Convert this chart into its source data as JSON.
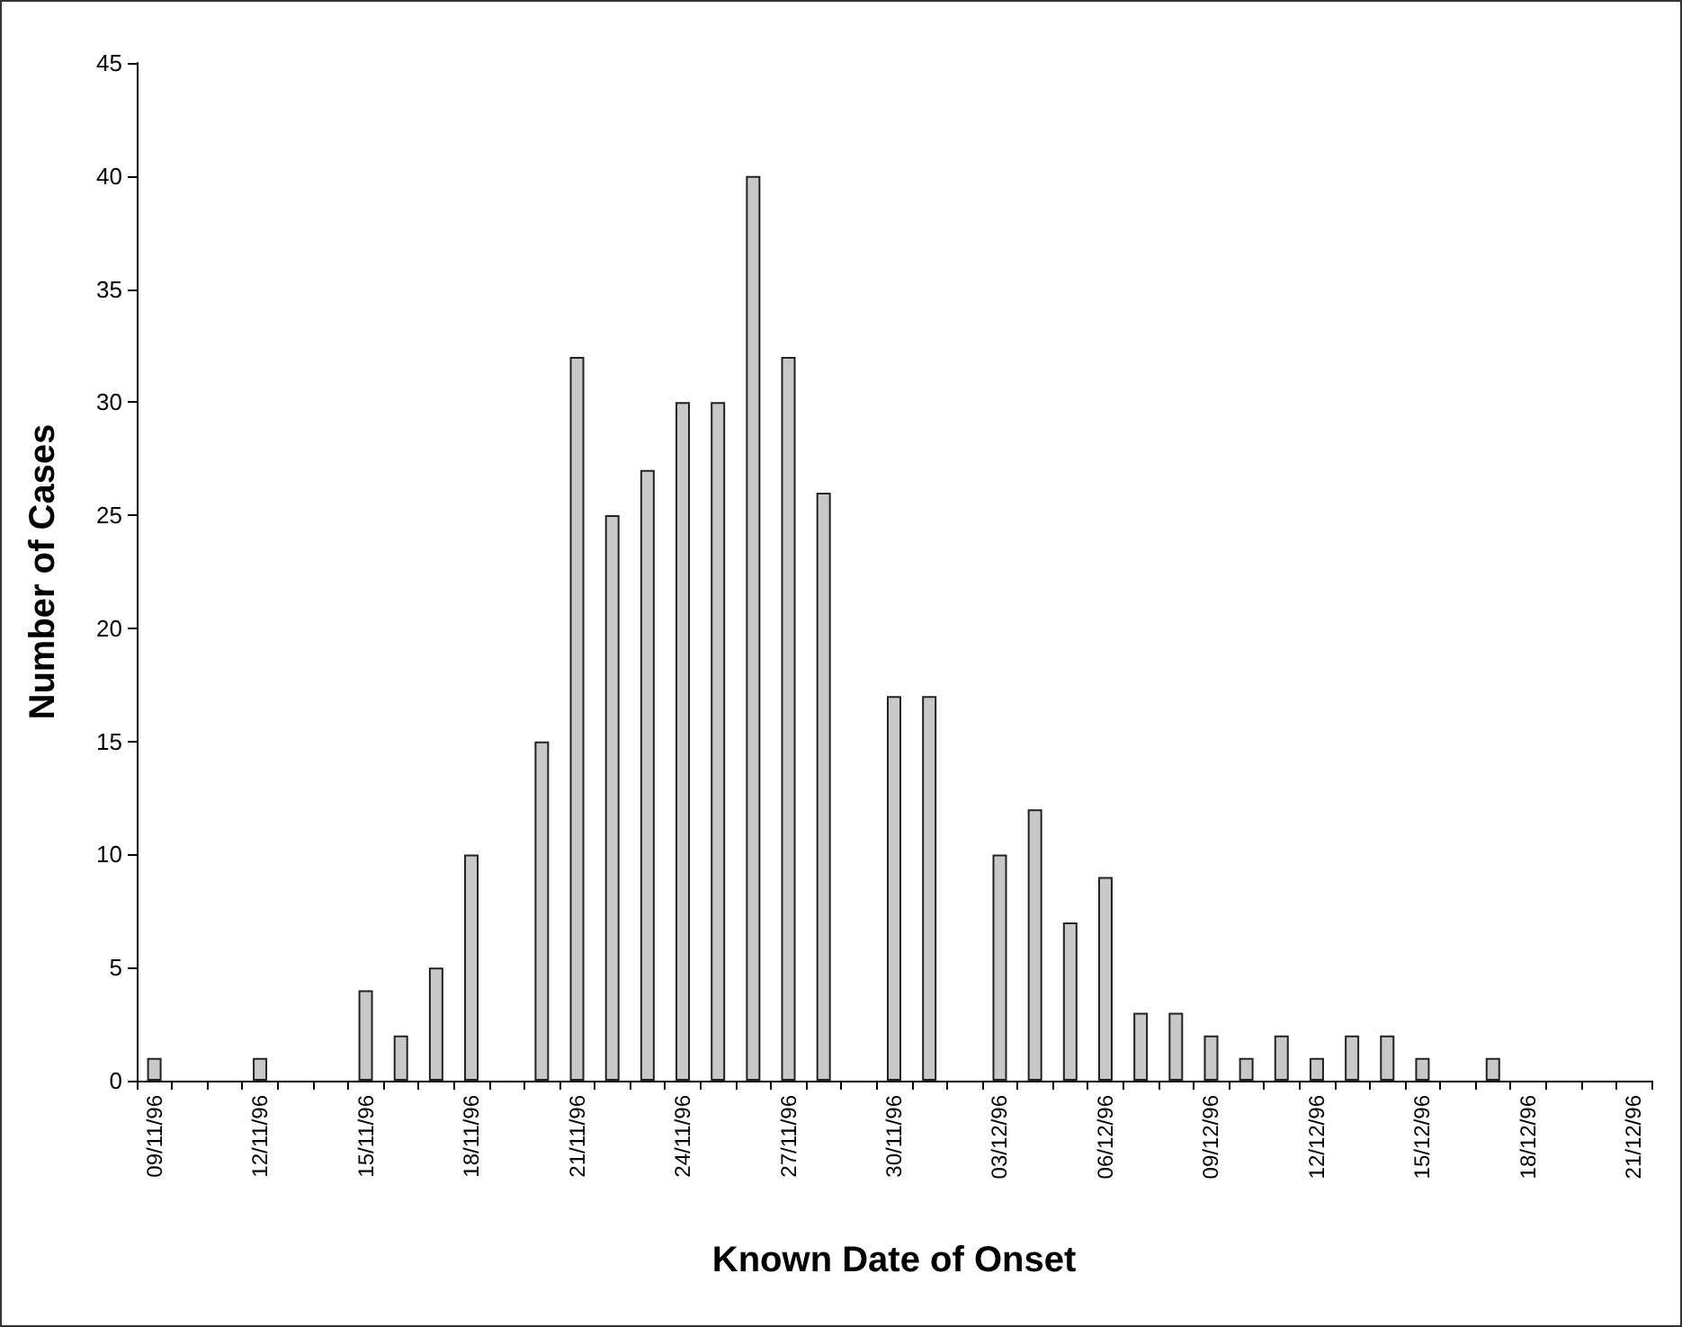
{
  "chart_data": {
    "type": "bar",
    "xlabel": "Known Date of Onset",
    "ylabel": "Number of Cases",
    "categories": [
      "09/11/96",
      null,
      null,
      "12/11/96",
      null,
      null,
      "15/11/96",
      null,
      null,
      "18/11/96",
      null,
      null,
      "21/11/96",
      null,
      null,
      "24/11/96",
      null,
      null,
      "27/11/96",
      null,
      null,
      "30/11/96",
      null,
      null,
      "03/12/96",
      null,
      null,
      "06/12/96",
      null,
      null,
      "09/12/96",
      null,
      null,
      "12/12/96",
      null,
      null,
      "15/12/96",
      null,
      null,
      "18/12/96",
      null,
      null,
      "21/12/96"
    ],
    "values": [
      1,
      0,
      0,
      1,
      0,
      0,
      4,
      2,
      5,
      10,
      0,
      15,
      32,
      25,
      27,
      30,
      30,
      40,
      32,
      26,
      0,
      17,
      17,
      0,
      10,
      12,
      7,
      9,
      3,
      3,
      2,
      1,
      2,
      1,
      2,
      2,
      1,
      0,
      1,
      0,
      0,
      0,
      0
    ],
    "color": "#c8c8c8",
    "ylim": [
      0,
      45
    ],
    "yticks": [
      0,
      5,
      10,
      15,
      20,
      25,
      30,
      35,
      40,
      45
    ],
    "grid": false
  }
}
